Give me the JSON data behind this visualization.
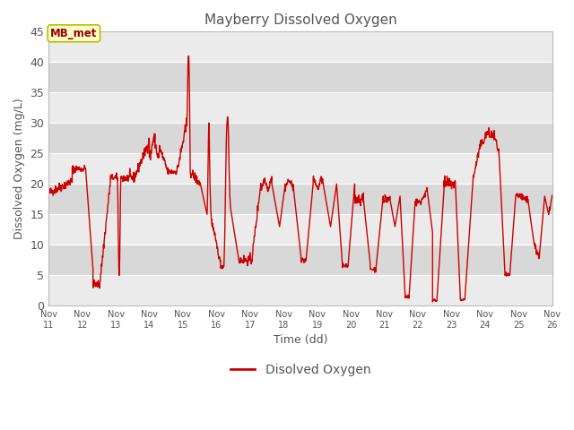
{
  "title": "Mayberry Dissolved Oxygen",
  "xlabel": "Time (dd)",
  "ylabel": "Dissolved Oxygen (mg/L)",
  "ylim": [
    0,
    45
  ],
  "yticks": [
    0,
    5,
    10,
    15,
    20,
    25,
    30,
    35,
    40,
    45
  ],
  "xlim": [
    11,
    26
  ],
  "xtick_labels": [
    "Nov 11",
    "Nov 12",
    "Nov 13",
    "Nov 14",
    "Nov 15",
    "Nov 16",
    "Nov 17",
    "Nov 18",
    "Nov 19",
    "Nov 20",
    "Nov 21",
    "Nov 22",
    "Nov 23",
    "Nov 24",
    "Nov 25",
    "Nov 26"
  ],
  "xtick_positions": [
    11,
    12,
    13,
    14,
    15,
    16,
    17,
    18,
    19,
    20,
    21,
    22,
    23,
    24,
    25,
    26
  ],
  "line_color": "#cc0000",
  "line_width": 1.0,
  "legend_label": "Disolved Oxygen",
  "annotation_label": "MB_met",
  "bg_color": "#ffffff",
  "plot_bg_light": "#f0f0f0",
  "plot_bg_dark": "#e0e0e0",
  "grid_color": "#ffffff",
  "title_color": "#555555",
  "axis_label_color": "#555555",
  "tick_label_color": "#555555",
  "band_colors": [
    "#ebebeb",
    "#d8d8d8"
  ]
}
